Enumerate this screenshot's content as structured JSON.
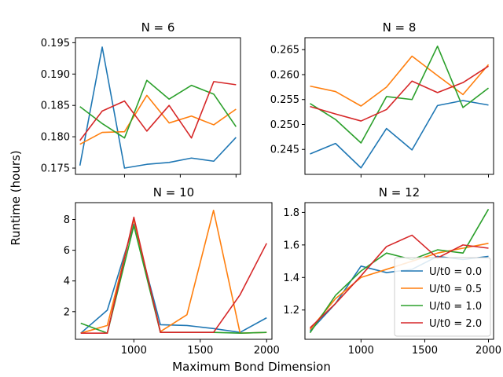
{
  "figure": {
    "xlabel": "Maximum Bond Dimension",
    "ylabel": "Runtime (hours)"
  },
  "chart_data": [
    {
      "type": "line",
      "title": "N = 6",
      "x": [
        600,
        800,
        1000,
        1200,
        1400,
        1600,
        1800,
        2000
      ],
      "xlim": [
        560,
        2040
      ],
      "xticks": [
        1000,
        1500,
        2000
      ],
      "show_xticklabels": false,
      "ylim": [
        0.174,
        0.1958
      ],
      "yticks": [
        0.175,
        0.18,
        0.185,
        0.19,
        0.195
      ],
      "ytick_labels": [
        "0.175",
        "0.180",
        "0.185",
        "0.190",
        "0.195"
      ],
      "series": [
        {
          "values": [
            0.1754,
            0.1943,
            0.175,
            0.1756,
            0.1759,
            0.1766,
            0.1761,
            0.1799
          ],
          "color": "#1f77b4"
        },
        {
          "values": [
            0.1788,
            0.1807,
            0.1808,
            0.1866,
            0.1822,
            0.1833,
            0.1819,
            0.1844
          ],
          "color": "#ff7f0e"
        },
        {
          "values": [
            0.1848,
            0.1821,
            0.1798,
            0.189,
            0.186,
            0.1882,
            0.1868,
            0.1816
          ],
          "color": "#2ca02c"
        },
        {
          "values": [
            0.1794,
            0.1841,
            0.1857,
            0.1809,
            0.185,
            0.1798,
            0.1888,
            0.1883
          ],
          "color": "#d62728"
        }
      ]
    },
    {
      "type": "line",
      "title": "N = 8",
      "x": [
        600,
        800,
        1000,
        1200,
        1400,
        1600,
        1800,
        2000
      ],
      "xlim": [
        560,
        2040
      ],
      "xticks": [
        1000,
        1500,
        2000
      ],
      "show_xticklabels": false,
      "ylim": [
        0.24,
        0.2674
      ],
      "yticks": [
        0.245,
        0.25,
        0.255,
        0.26,
        0.265
      ],
      "ytick_labels": [
        "0.245",
        "0.250",
        "0.255",
        "0.260",
        "0.265"
      ],
      "series": [
        {
          "values": [
            0.2441,
            0.2462,
            0.2413,
            0.2492,
            0.2449,
            0.2538,
            0.2548,
            0.2539
          ],
          "color": "#1f77b4"
        },
        {
          "values": [
            0.2577,
            0.2566,
            0.2537,
            0.2575,
            0.2637,
            0.2598,
            0.256,
            0.262
          ],
          "color": "#ff7f0e"
        },
        {
          "values": [
            0.2542,
            0.251,
            0.2463,
            0.2556,
            0.255,
            0.2657,
            0.2534,
            0.2573
          ],
          "color": "#2ca02c"
        },
        {
          "values": [
            0.2536,
            0.2521,
            0.2507,
            0.253,
            0.2587,
            0.2564,
            0.2584,
            0.2617
          ],
          "color": "#d62728"
        }
      ]
    },
    {
      "type": "line",
      "title": "N = 10",
      "x": [
        600,
        800,
        1000,
        1200,
        1400,
        1600,
        1800,
        2000
      ],
      "xlim": [
        560,
        2040
      ],
      "xticks": [
        1000,
        1500,
        2000
      ],
      "xtick_labels": [
        "1000",
        "1500",
        "2000"
      ],
      "show_xticklabels": true,
      "ylim": [
        0.2,
        9.1
      ],
      "yticks": [
        2,
        4,
        6,
        8
      ],
      "ytick_labels": [
        "2",
        "4",
        "6",
        "8"
      ],
      "series": [
        {
          "values": [
            0.6,
            2.1,
            7.7,
            1.15,
            1.1,
            0.9,
            0.65,
            1.6
          ],
          "color": "#1f77b4"
        },
        {
          "values": [
            0.6,
            1.1,
            8.0,
            0.7,
            1.8,
            8.6,
            0.6,
            0.65
          ],
          "color": "#ff7f0e"
        },
        {
          "values": [
            1.25,
            0.6,
            7.6,
            0.65,
            0.65,
            0.65,
            0.6,
            0.65
          ],
          "color": "#2ca02c"
        },
        {
          "values": [
            0.6,
            0.6,
            8.15,
            0.65,
            0.65,
            0.65,
            3.1,
            6.45
          ],
          "color": "#d62728"
        }
      ]
    },
    {
      "type": "line",
      "title": "N = 12",
      "x": [
        600,
        800,
        1000,
        1200,
        1400,
        1600,
        1800,
        2000
      ],
      "xlim": [
        560,
        2040
      ],
      "xticks": [
        1000,
        1500,
        2000
      ],
      "xtick_labels": [
        "1000",
        "1500",
        "2000"
      ],
      "show_xticklabels": true,
      "ylim": [
        1.02,
        1.86
      ],
      "yticks": [
        1.2,
        1.4,
        1.6,
        1.8
      ],
      "ytick_labels": [
        "1.2",
        "1.4",
        "1.6",
        "1.8"
      ],
      "legend": {
        "placement": "lower-right",
        "entries": [
          {
            "label": "U/t0 = 0.0",
            "color": "#1f77b4"
          },
          {
            "label": "U/t0 = 0.5",
            "color": "#ff7f0e"
          },
          {
            "label": "U/t0 = 1.0",
            "color": "#2ca02c"
          },
          {
            "label": "U/t0 = 2.0",
            "color": "#d62728"
          }
        ]
      },
      "series": [
        {
          "values": [
            1.07,
            1.24,
            1.47,
            1.43,
            1.45,
            1.53,
            1.51,
            1.53
          ],
          "color": "#1f77b4"
        },
        {
          "values": [
            1.08,
            1.27,
            1.4,
            1.45,
            1.5,
            1.55,
            1.58,
            1.61
          ],
          "color": "#ff7f0e"
        },
        {
          "values": [
            1.06,
            1.29,
            1.44,
            1.55,
            1.51,
            1.57,
            1.55,
            1.82
          ],
          "color": "#2ca02c"
        },
        {
          "values": [
            1.09,
            1.24,
            1.41,
            1.59,
            1.66,
            1.52,
            1.6,
            1.58
          ],
          "color": "#d62728"
        }
      ]
    }
  ]
}
